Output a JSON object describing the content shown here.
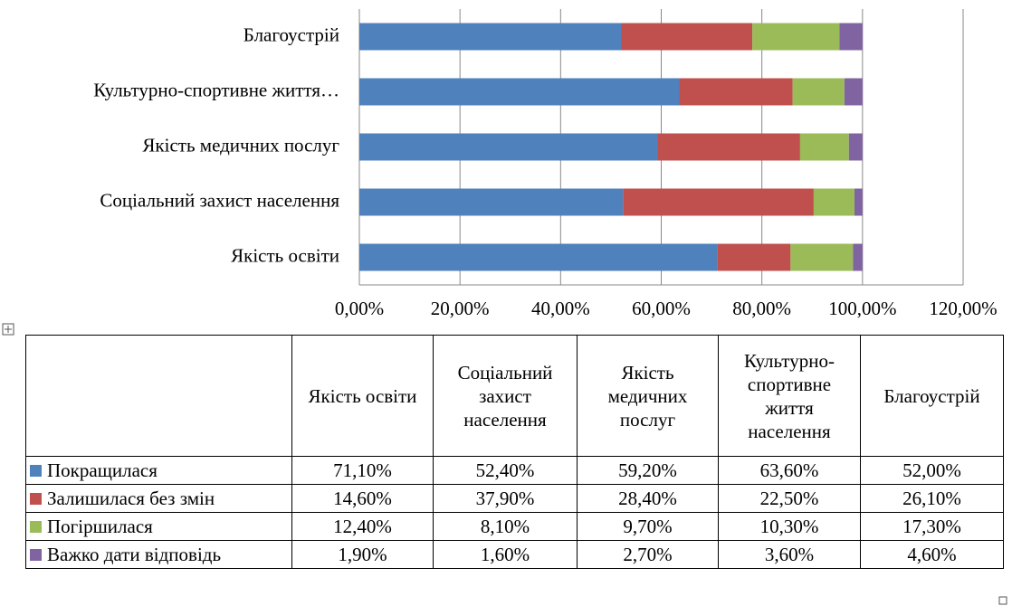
{
  "chart_data": {
    "type": "stacked-bar-horizontal",
    "categories": [
      "Якість освіти",
      "Соціальний захист населення",
      "Якість медичних послуг",
      "Культурно-спортивне життя…",
      "Благоустрій"
    ],
    "series": [
      {
        "name": "Покращилася",
        "color": "#4f81bd",
        "values": [
          71.1,
          52.4,
          59.2,
          63.6,
          52.0
        ],
        "value_labels": [
          "71,10%",
          "52,40%",
          "59,20%",
          "63,60%",
          "52,00%"
        ]
      },
      {
        "name": "Залишилася без змін",
        "color": "#c0504d",
        "values": [
          14.6,
          37.9,
          28.4,
          22.5,
          26.1
        ],
        "value_labels": [
          "14,60%",
          "37,90%",
          "28,40%",
          "22,50%",
          "26,10%"
        ]
      },
      {
        "name": "Погіршилася",
        "color": "#9bbb59",
        "values": [
          12.4,
          8.1,
          9.7,
          10.3,
          17.3
        ],
        "value_labels": [
          "12,40%",
          "8,10%",
          "9,70%",
          "10,30%",
          "17,30%"
        ]
      },
      {
        "name": "Важко дати відповідь",
        "color": "#8064a2",
        "values": [
          1.9,
          1.6,
          2.7,
          3.6,
          4.6
        ],
        "value_labels": [
          "1,90%",
          "1,60%",
          "2,70%",
          "3,60%",
          "4,60%"
        ]
      }
    ],
    "table_headers": [
      "Якість освіти",
      "Соціальний захист населення",
      "Якість медичних послуг",
      "Культурно-спортивне життя населення",
      "Благоустрій"
    ],
    "xlim": [
      0,
      120
    ],
    "xticks": [
      {
        "value": 0,
        "label": "0,00%"
      },
      {
        "value": 20,
        "label": "20,00%"
      },
      {
        "value": 40,
        "label": "40,00%"
      },
      {
        "value": 60,
        "label": "60,00%"
      },
      {
        "value": 80,
        "label": "80,00%"
      },
      {
        "value": 100,
        "label": "100,00%"
      },
      {
        "value": 120,
        "label": "120,00%"
      }
    ],
    "grid": true
  }
}
